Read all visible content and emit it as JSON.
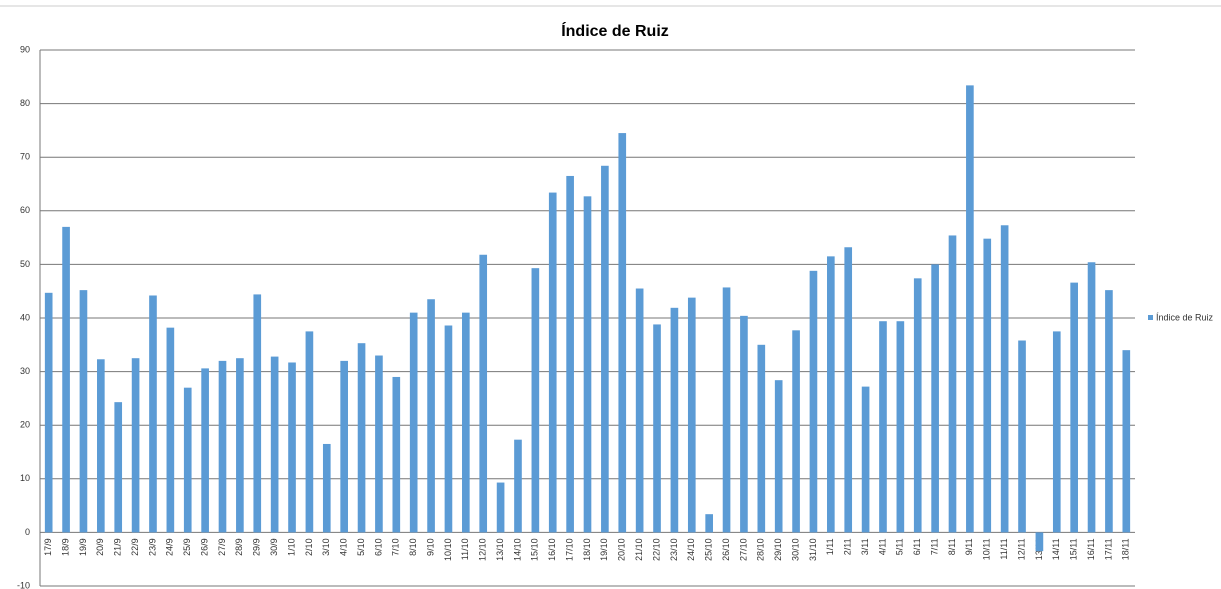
{
  "chart_data": {
    "type": "bar",
    "title": "Índice de Ruiz",
    "categories": [
      "17/9",
      "18/9",
      "19/9",
      "20/9",
      "21/9",
      "22/9",
      "23/9",
      "24/9",
      "25/9",
      "26/9",
      "27/9",
      "28/9",
      "29/9",
      "30/9",
      "1/10",
      "2/10",
      "3/10",
      "4/10",
      "5/10",
      "6/10",
      "7/10",
      "8/10",
      "9/10",
      "10/10",
      "11/10",
      "12/10",
      "13/10",
      "14/10",
      "15/10",
      "16/10",
      "17/10",
      "18/10",
      "19/10",
      "20/10",
      "21/10",
      "22/10",
      "23/10",
      "24/10",
      "25/10",
      "26/10",
      "27/10",
      "28/10",
      "29/10",
      "30/10",
      "31/10",
      "1/11",
      "2/11",
      "3/11",
      "4/11",
      "5/11",
      "6/11",
      "7/11",
      "8/11",
      "9/11",
      "10/11",
      "11/11",
      "12/11",
      "13/11",
      "14/11",
      "15/11",
      "16/11",
      "17/11",
      "18/11"
    ],
    "series": [
      {
        "name": "Índice de Ruiz",
        "color": "#5b9bd5",
        "values": [
          44.7,
          57,
          45.2,
          32.3,
          24.3,
          32.5,
          44.2,
          38.2,
          27,
          30.6,
          32,
          32.5,
          44.4,
          32.8,
          31.7,
          37.5,
          16.5,
          32,
          35.3,
          33,
          29,
          41,
          43.5,
          38.6,
          41,
          51.8,
          9.3,
          17.3,
          49.3,
          63.4,
          66.5,
          62.7,
          68.4,
          74.5,
          45.5,
          38.8,
          41.9,
          43.8,
          3.4,
          45.7,
          40.4,
          35,
          28.4,
          37.7,
          48.8,
          51.5,
          53.2,
          27.2,
          39.4,
          39.4,
          47.4,
          50,
          55.4,
          83.4,
          54.8,
          57.3,
          35.8,
          -3.5,
          37.5,
          46.6,
          50.4,
          45.2,
          34
        ]
      }
    ],
    "ylim": [
      -10,
      90
    ],
    "yticks": [
      -10,
      0,
      10,
      20,
      30,
      40,
      50,
      60,
      70,
      80,
      90
    ],
    "grid": true,
    "legend": "right"
  }
}
